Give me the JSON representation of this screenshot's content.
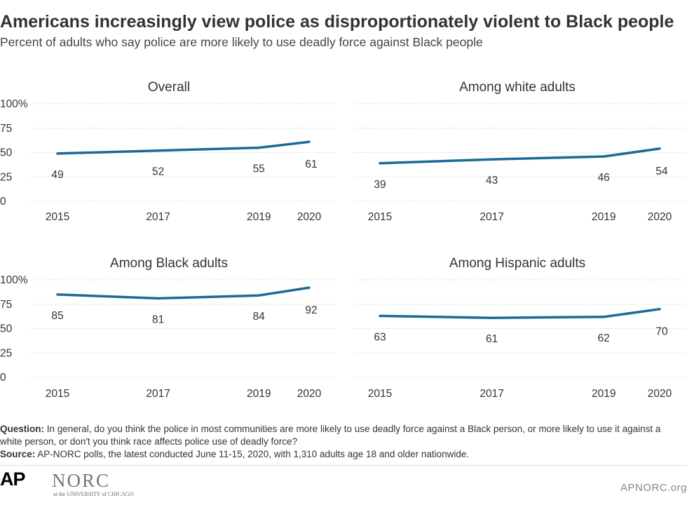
{
  "title": "Americans increasingly view police as disproportionately violent to Black people",
  "subtitle": "Percent of adults who say police are more likely to use deadly force against Black people",
  "colors": {
    "line": "#1d6a96",
    "grid": "#cccccc",
    "text": "#333333"
  },
  "chart_data": [
    {
      "type": "line",
      "title": "Overall",
      "x": [
        2015,
        2017,
        2019,
        2020
      ],
      "x_tick_labels": [
        "2015",
        "2017",
        "2019",
        "2020"
      ],
      "series": [
        {
          "values": [
            49,
            52,
            55,
            61
          ]
        }
      ],
      "y_ticks": [
        "0",
        "25",
        "50",
        "75",
        "100%"
      ],
      "ylim": [
        0,
        100
      ],
      "grid": true
    },
    {
      "type": "line",
      "title": "Among white adults",
      "x": [
        2015,
        2017,
        2019,
        2020
      ],
      "x_tick_labels": [
        "2015",
        "2017",
        "2019",
        "2020"
      ],
      "series": [
        {
          "values": [
            39,
            43,
            46,
            54
          ]
        }
      ],
      "y_ticks": [],
      "ylim": [
        0,
        100
      ],
      "grid": true
    },
    {
      "type": "line",
      "title": "Among Black adults",
      "x": [
        2015,
        2017,
        2019,
        2020
      ],
      "x_tick_labels": [
        "2015",
        "2017",
        "2019",
        "2020"
      ],
      "series": [
        {
          "values": [
            85,
            81,
            84,
            92
          ]
        }
      ],
      "y_ticks": [
        "0",
        "25",
        "50",
        "75",
        "100%"
      ],
      "ylim": [
        0,
        100
      ],
      "grid": true
    },
    {
      "type": "line",
      "title": "Among Hispanic adults",
      "x": [
        2015,
        2017,
        2019,
        2020
      ],
      "x_tick_labels": [
        "2015",
        "2017",
        "2019",
        "2020"
      ],
      "series": [
        {
          "values": [
            63,
            61,
            62,
            70
          ]
        }
      ],
      "y_ticks": [],
      "ylim": [
        0,
        100
      ],
      "grid": true
    }
  ],
  "notes": {
    "question_label": "Question:",
    "question_text": " In general, do you think the police in most communities are more likely to use deadly force against a Black person, or more likely to use it against a white person, or don't you think race affects police use of deadly force?",
    "source_label": "Source:",
    "source_text": " AP-NORC polls, the latest conducted June 11-15, 2020, with 1,310 adults age 18 and older nationwide."
  },
  "footer": {
    "ap_logo": "AP",
    "norc_logo": "NORC",
    "norc_tagline": "at the UNIVERSITY of CHICAGO",
    "site": "APNORC.org"
  }
}
